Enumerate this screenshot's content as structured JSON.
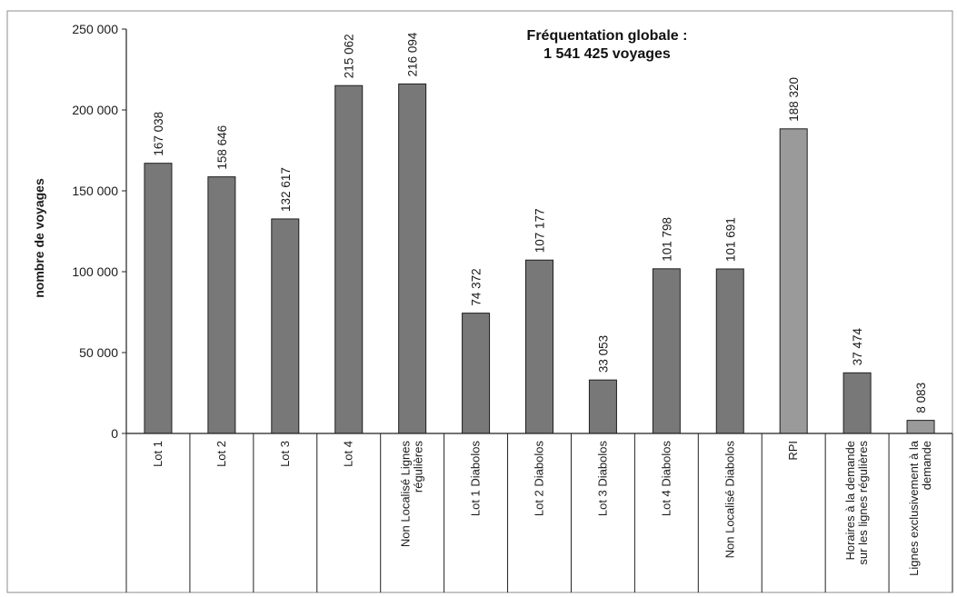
{
  "chart_data": {
    "type": "bar",
    "title": "Fréquentation globale :",
    "subtitle": "1 541 425 voyages",
    "ylabel": "nombre de voyages",
    "xlabel": "",
    "ylim": [
      0,
      250000
    ],
    "yticks": [
      0,
      50000,
      100000,
      150000,
      200000,
      250000
    ],
    "ytick_labels": [
      "0",
      "50 000",
      "100 000",
      "150 000",
      "200 000",
      "250 000"
    ],
    "grid": false,
    "categories": [
      [
        "Lot 1"
      ],
      [
        "Lot 2"
      ],
      [
        "Lot 3"
      ],
      [
        "Lot 4"
      ],
      [
        "Non Localisé Lignes",
        "régulières"
      ],
      [
        "Lot 1 Diabolos"
      ],
      [
        "Lot 2 Diabolos"
      ],
      [
        "Lot 3 Diabolos"
      ],
      [
        "Lot 4 Diabolos"
      ],
      [
        "Non Localisé Diabolos"
      ],
      [
        "RPI"
      ],
      [
        "Horaires à la demande",
        "sur les lignes régulières"
      ],
      [
        "Lignes exclusivement à la",
        "demande"
      ]
    ],
    "values": [
      167038,
      158646,
      132617,
      215062,
      216094,
      74372,
      107177,
      33053,
      101798,
      101691,
      188320,
      37474,
      8083
    ],
    "value_labels": [
      "167 038",
      "158 646",
      "132 617",
      "215 062",
      "216 094",
      "74 372",
      "107 177",
      "33 053",
      "101 798",
      "101 691",
      "188 320",
      "37 474",
      "8 083"
    ],
    "colors": {
      "bar": "#787878",
      "bar_highlight": "#9a9a9a",
      "bar_stroke": "#1e1e1e",
      "axis": "#222222",
      "frame": "#8c8c8c"
    },
    "highlight_indices": [
      10,
      12
    ]
  }
}
